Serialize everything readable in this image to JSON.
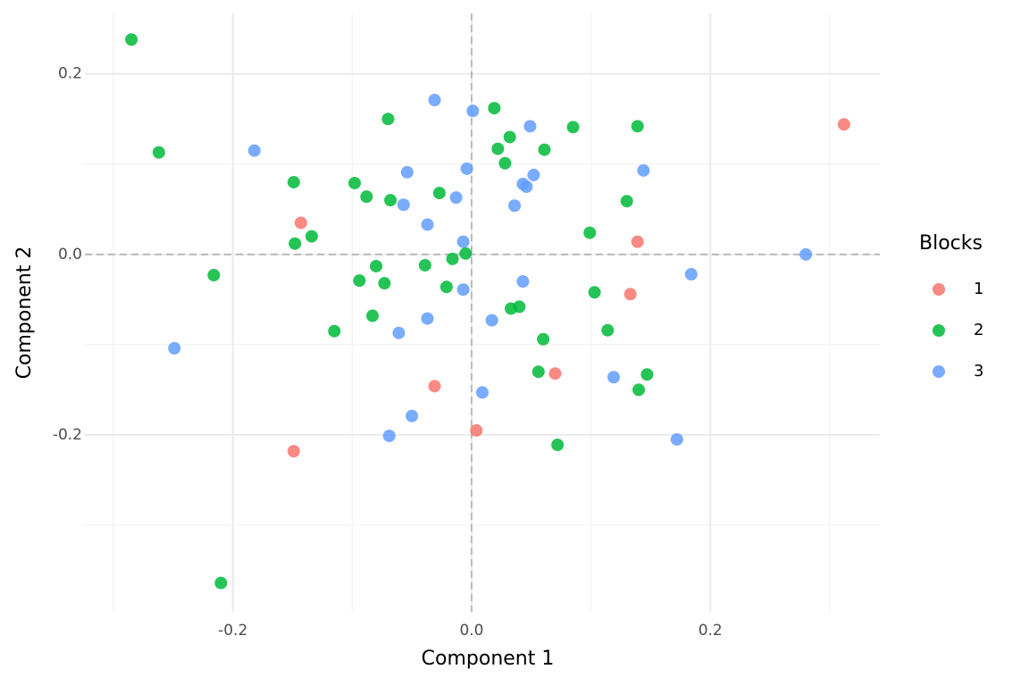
{
  "chart_data": {
    "type": "scatter",
    "xlabel": "Component 1",
    "ylabel": "Component 2",
    "xlim": [
      -0.324,
      0.342
    ],
    "ylim": [
      -0.396,
      0.267
    ],
    "xticks": [
      -0.2,
      {
        "value": 0,
        "label": "0.0"
      },
      0.2
    ],
    "yticks": [
      -0.2,
      {
        "value": 0,
        "label": "0.0"
      },
      0.2
    ],
    "xminor": [
      -0.3,
      -0.1,
      0.1,
      0.3
    ],
    "yminor": [
      -0.3,
      -0.1,
      0.1
    ],
    "grid": true,
    "reference_lines": {
      "x": 0,
      "y": 0
    },
    "legend_title": "Blocks",
    "legend": "right",
    "series": [
      {
        "name": "1",
        "color": "#F8766D",
        "x": [
          0.312,
          -0.143,
          0.139,
          0.133,
          0.07,
          -0.031,
          0.004,
          -0.149
        ],
        "y": [
          0.144,
          0.035,
          0.014,
          -0.044,
          -0.132,
          -0.146,
          -0.195,
          -0.218
        ]
      },
      {
        "name": "2",
        "color": "#00BA38",
        "x": [
          -0.285,
          -0.262,
          -0.07,
          0.019,
          0.085,
          0.139,
          0.022,
          0.032,
          0.061,
          0.028,
          -0.149,
          -0.098,
          -0.088,
          -0.068,
          -0.027,
          0.13,
          0.099,
          -0.134,
          -0.148,
          -0.216,
          -0.08,
          -0.039,
          -0.016,
          -0.005,
          -0.094,
          -0.073,
          -0.021,
          0.103,
          0.033,
          0.04,
          -0.083,
          -0.115,
          0.114,
          0.06,
          0.056,
          0.147,
          0.14,
          0.072,
          -0.21
        ],
        "y": [
          0.238,
          0.113,
          0.15,
          0.162,
          0.141,
          0.142,
          0.117,
          0.13,
          0.116,
          0.101,
          0.08,
          0.079,
          0.064,
          0.06,
          0.068,
          0.059,
          0.024,
          0.02,
          0.012,
          -0.023,
          -0.013,
          -0.012,
          -0.005,
          0.001,
          -0.029,
          -0.032,
          -0.036,
          -0.042,
          -0.06,
          -0.058,
          -0.068,
          -0.085,
          -0.084,
          -0.094,
          -0.13,
          -0.133,
          -0.15,
          -0.211,
          -0.364
        ]
      },
      {
        "name": "3",
        "color": "#619CFF",
        "x": [
          -0.031,
          0.001,
          0.049,
          -0.182,
          0.144,
          -0.004,
          -0.054,
          0.052,
          0.043,
          0.046,
          -0.013,
          -0.057,
          0.036,
          -0.037,
          -0.007,
          0.28,
          0.184,
          0.043,
          -0.007,
          -0.037,
          0.017,
          -0.061,
          -0.249,
          0.119,
          0.009,
          -0.05,
          -0.069,
          0.172
        ],
        "y": [
          0.171,
          0.159,
          0.142,
          0.115,
          0.093,
          0.095,
          0.091,
          0.088,
          0.078,
          0.075,
          0.063,
          0.055,
          0.054,
          0.033,
          0.014,
          0.0,
          -0.022,
          -0.03,
          -0.039,
          -0.071,
          -0.073,
          -0.087,
          -0.104,
          -0.136,
          -0.153,
          -0.179,
          -0.201,
          -0.205
        ]
      }
    ]
  }
}
